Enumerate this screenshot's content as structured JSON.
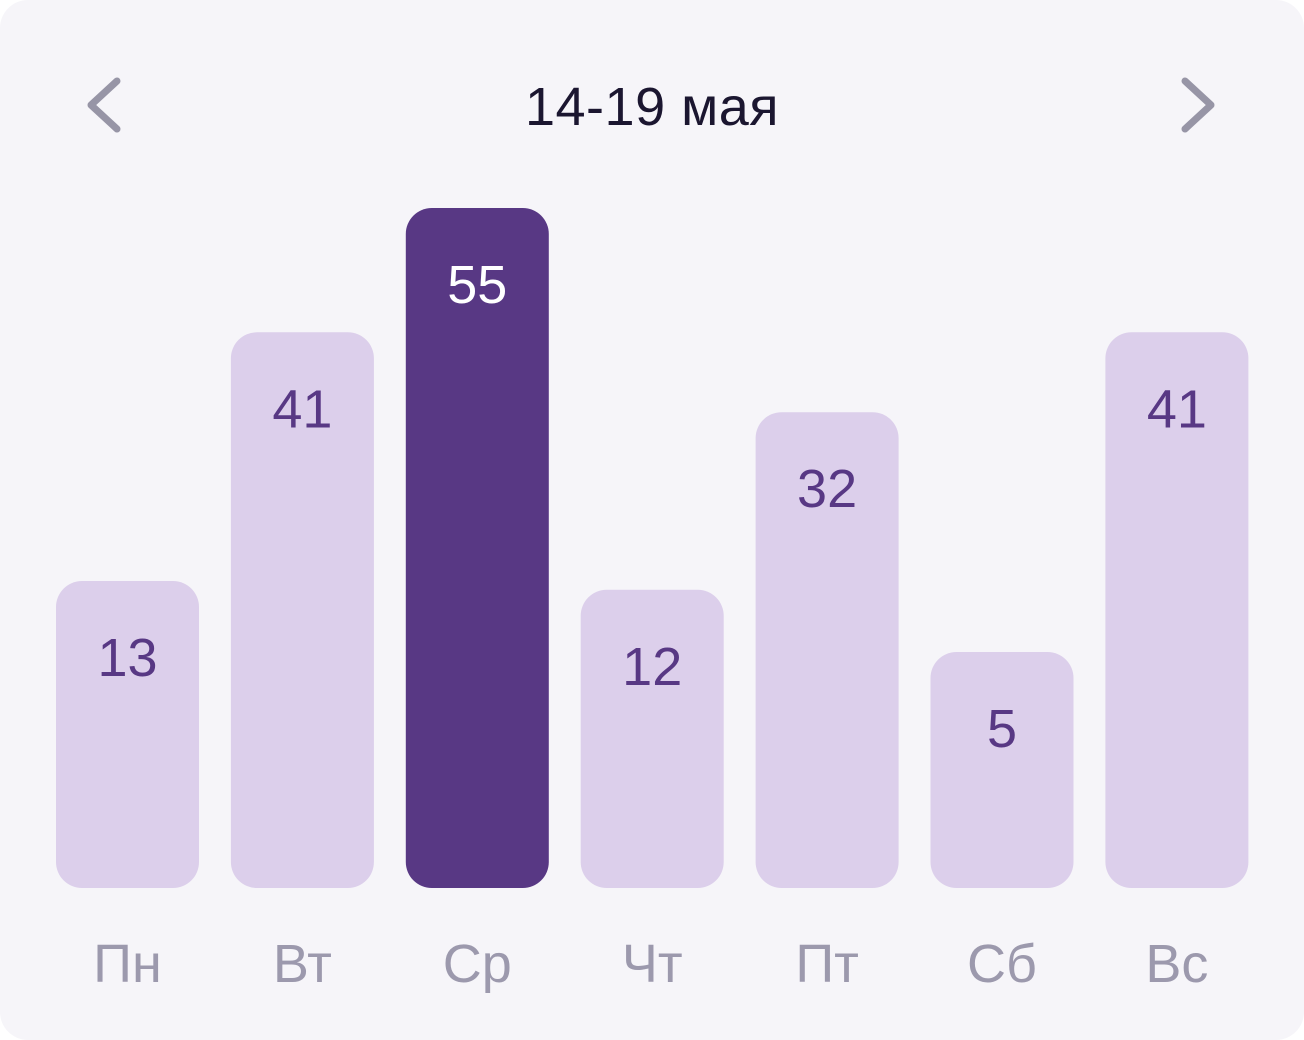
{
  "header": {
    "title": "14-19 мая",
    "prev_icon": "chevron-left-icon",
    "next_icon": "chevron-right-icon"
  },
  "colors": {
    "bar": "#dccfeb",
    "bar_selected": "#583884",
    "value_text": "#583884",
    "value_text_selected": "#ffffff",
    "day_text": "#9c99ad",
    "chevron": "#9795a6"
  },
  "chart_data": {
    "type": "bar",
    "categories": [
      "Пн",
      "Вт",
      "Ср",
      "Чт",
      "Пт",
      "Сб",
      "Вс"
    ],
    "values": [
      13,
      41,
      55,
      12,
      32,
      5,
      41
    ],
    "selected_index": 2,
    "title": "",
    "xlabel": "",
    "ylabel": "",
    "ylim": [
      0,
      55
    ],
    "grid": false,
    "legend": "none"
  }
}
